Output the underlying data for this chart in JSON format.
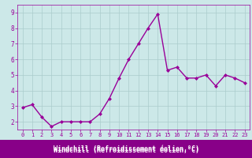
{
  "x": [
    0,
    1,
    2,
    3,
    4,
    5,
    6,
    7,
    8,
    9,
    10,
    11,
    12,
    13,
    14,
    15,
    16,
    17,
    18,
    19,
    20,
    21,
    22,
    23
  ],
  "y": [
    2.9,
    3.1,
    2.3,
    1.7,
    2.0,
    2.0,
    2.0,
    2.0,
    2.5,
    3.5,
    4.8,
    6.0,
    7.0,
    8.0,
    8.9,
    5.3,
    5.5,
    4.8,
    4.8,
    5.0,
    4.3,
    5.0,
    4.8,
    4.5
  ],
  "line_color": "#990099",
  "marker": "D",
  "marker_size": 2,
  "line_width": 1.0,
  "xlabel": "Windchill (Refroidissement éolien,°C)",
  "xlabel_color": "#ffffff",
  "xlabel_bg": "#880088",
  "ylim": [
    1.5,
    9.5
  ],
  "xlim": [
    -0.5,
    23.5
  ],
  "yticks": [
    2,
    3,
    4,
    5,
    6,
    7,
    8,
    9
  ],
  "xticks": [
    0,
    1,
    2,
    3,
    4,
    5,
    6,
    7,
    8,
    9,
    10,
    11,
    12,
    13,
    14,
    15,
    16,
    17,
    18,
    19,
    20,
    21,
    22,
    23
  ],
  "bg_color": "#cce8e8",
  "grid_color": "#aacccc",
  "tick_color": "#990099",
  "tick_label_fontsize": 5,
  "xlabel_fontsize": 6
}
